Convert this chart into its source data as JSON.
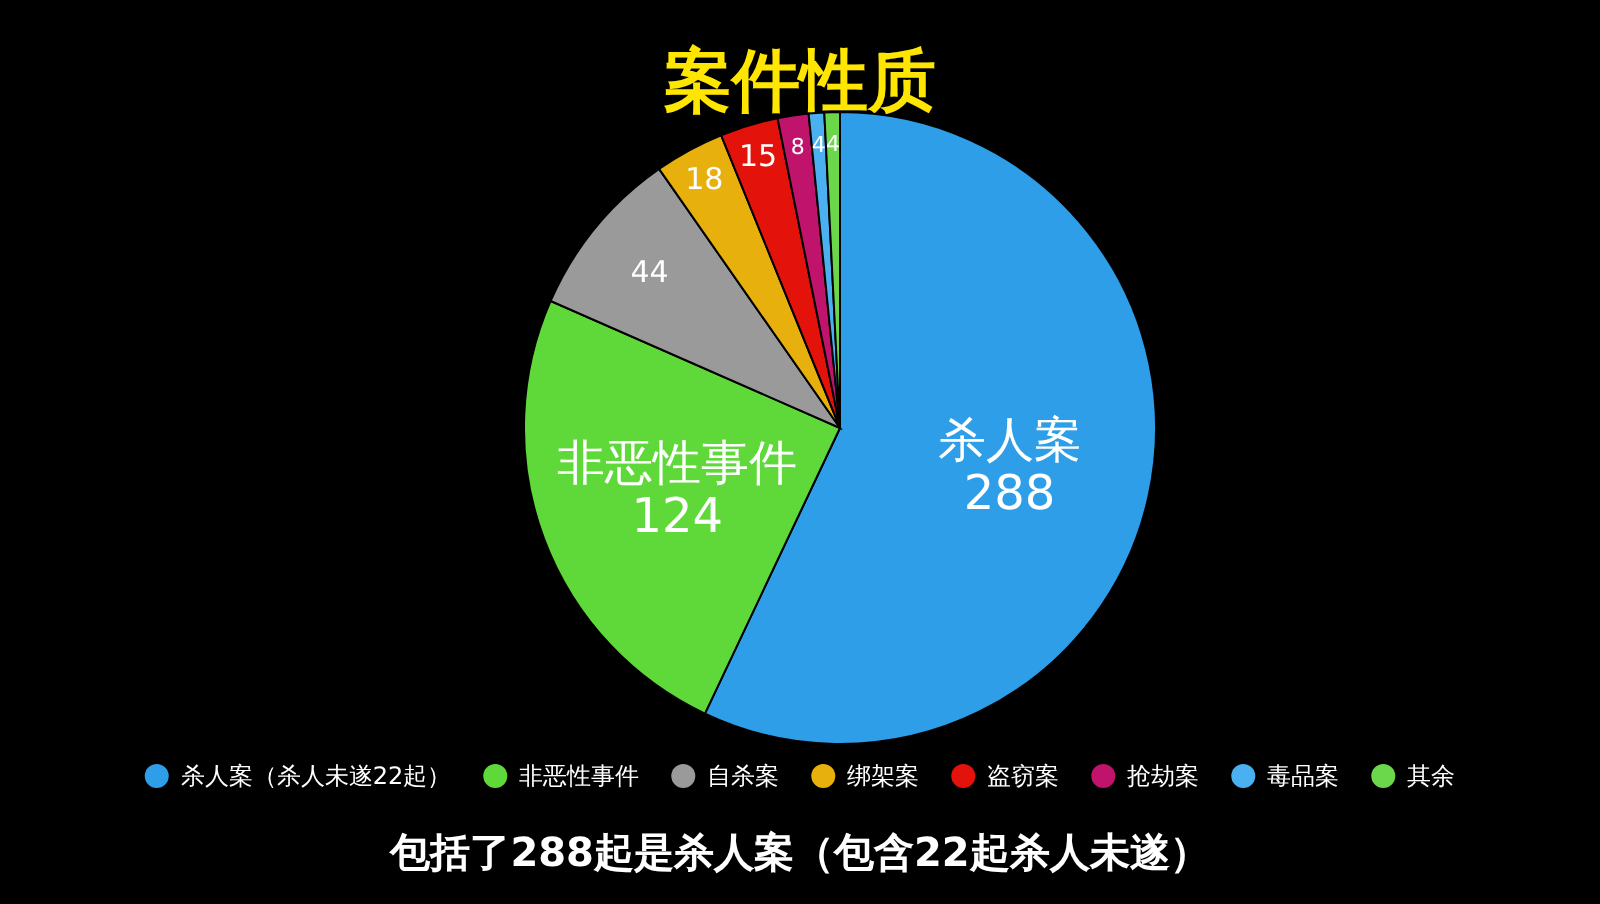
{
  "chart_data": {
    "type": "pie",
    "title": "案件性质",
    "categories": [
      "杀人案（杀人未遂22起）",
      "非恶性事件",
      "自杀案",
      "绑架案",
      "盗窃案",
      "抢劫案",
      "毒品案",
      "其余"
    ],
    "values": [
      288,
      124,
      44,
      18,
      15,
      8,
      4,
      4
    ],
    "value_labels": [
      "杀人案 288",
      "非恶性事件 124",
      "44",
      "18",
      "15",
      "8",
      "4",
      "4"
    ],
    "colors": [
      "#2f9ee8",
      "#5fd93a",
      "#9a9a9a",
      "#e8b00c",
      "#e3120b",
      "#c0136c",
      "#4ab0f0",
      "#6ad84a"
    ],
    "legend": "bottom",
    "annotations": [
      "包括了288起是杀人案（包含22起杀人未遂）"
    ]
  }
}
